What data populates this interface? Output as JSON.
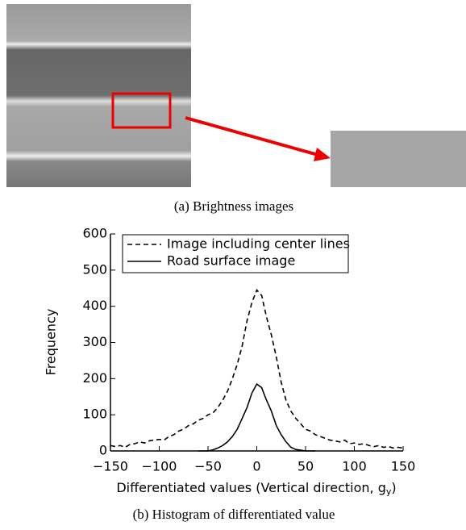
{
  "captions": [
    "(a)   Brightness images",
    "(b)   Histogram of differentiated value"
  ],
  "chart_data": {
    "type": "line",
    "xlabel": [
      "Differentiated values (Vertical direction, g",
      "y",
      ")"
    ],
    "ylabel": "Frequency",
    "x": [
      -150,
      -145,
      -140,
      -135,
      -130,
      -125,
      -120,
      -115,
      -110,
      -105,
      -100,
      -95,
      -90,
      -85,
      -80,
      -75,
      -70,
      -65,
      -60,
      -55,
      -50,
      -45,
      -40,
      -35,
      -30,
      -25,
      -20,
      -15,
      -10,
      -5,
      0,
      5,
      10,
      15,
      20,
      25,
      30,
      35,
      40,
      45,
      50,
      55,
      60,
      65,
      70,
      75,
      80,
      85,
      90,
      95,
      100,
      105,
      110,
      115,
      120,
      125,
      130,
      135,
      140,
      145,
      150
    ],
    "series": [
      {
        "name": "Image including center lines",
        "color": "#000000",
        "dash": true,
        "values": [
          15,
          12,
          15,
          10,
          18,
          20,
          25,
          22,
          28,
          30,
          32,
          30,
          40,
          45,
          55,
          60,
          70,
          75,
          85,
          90,
          100,
          105,
          120,
          140,
          165,
          200,
          240,
          290,
          360,
          410,
          445,
          430,
          370,
          320,
          260,
          190,
          140,
          110,
          90,
          75,
          60,
          55,
          45,
          40,
          35,
          30,
          28,
          25,
          30,
          20,
          22,
          18,
          20,
          15,
          12,
          15,
          10,
          12,
          8,
          10,
          8
        ]
      },
      {
        "name": "Road surface image",
        "color": "#000000",
        "dash": false,
        "values": [
          null,
          null,
          null,
          null,
          null,
          null,
          null,
          null,
          null,
          null,
          null,
          null,
          null,
          null,
          null,
          null,
          null,
          null,
          0,
          0,
          0,
          3,
          8,
          15,
          25,
          40,
          60,
          90,
          120,
          160,
          185,
          175,
          140,
          110,
          70,
          45,
          25,
          10,
          4,
          2,
          0,
          0,
          0,
          null,
          null,
          null,
          null,
          null,
          null,
          null,
          null,
          null,
          null,
          null,
          null,
          null,
          null,
          null,
          null,
          null,
          null
        ]
      }
    ],
    "xlim": [
      -150,
      150
    ],
    "xticks": [
      {
        "value": -150,
        "label": "−150"
      },
      {
        "value": -100,
        "label": "−100"
      },
      {
        "value": -50,
        "label": "−50"
      },
      0,
      50,
      100,
      150
    ],
    "ylim": [
      0,
      600
    ],
    "yticks": [
      0,
      100,
      200,
      300,
      400,
      500,
      600
    ],
    "legend": "upper left"
  }
}
